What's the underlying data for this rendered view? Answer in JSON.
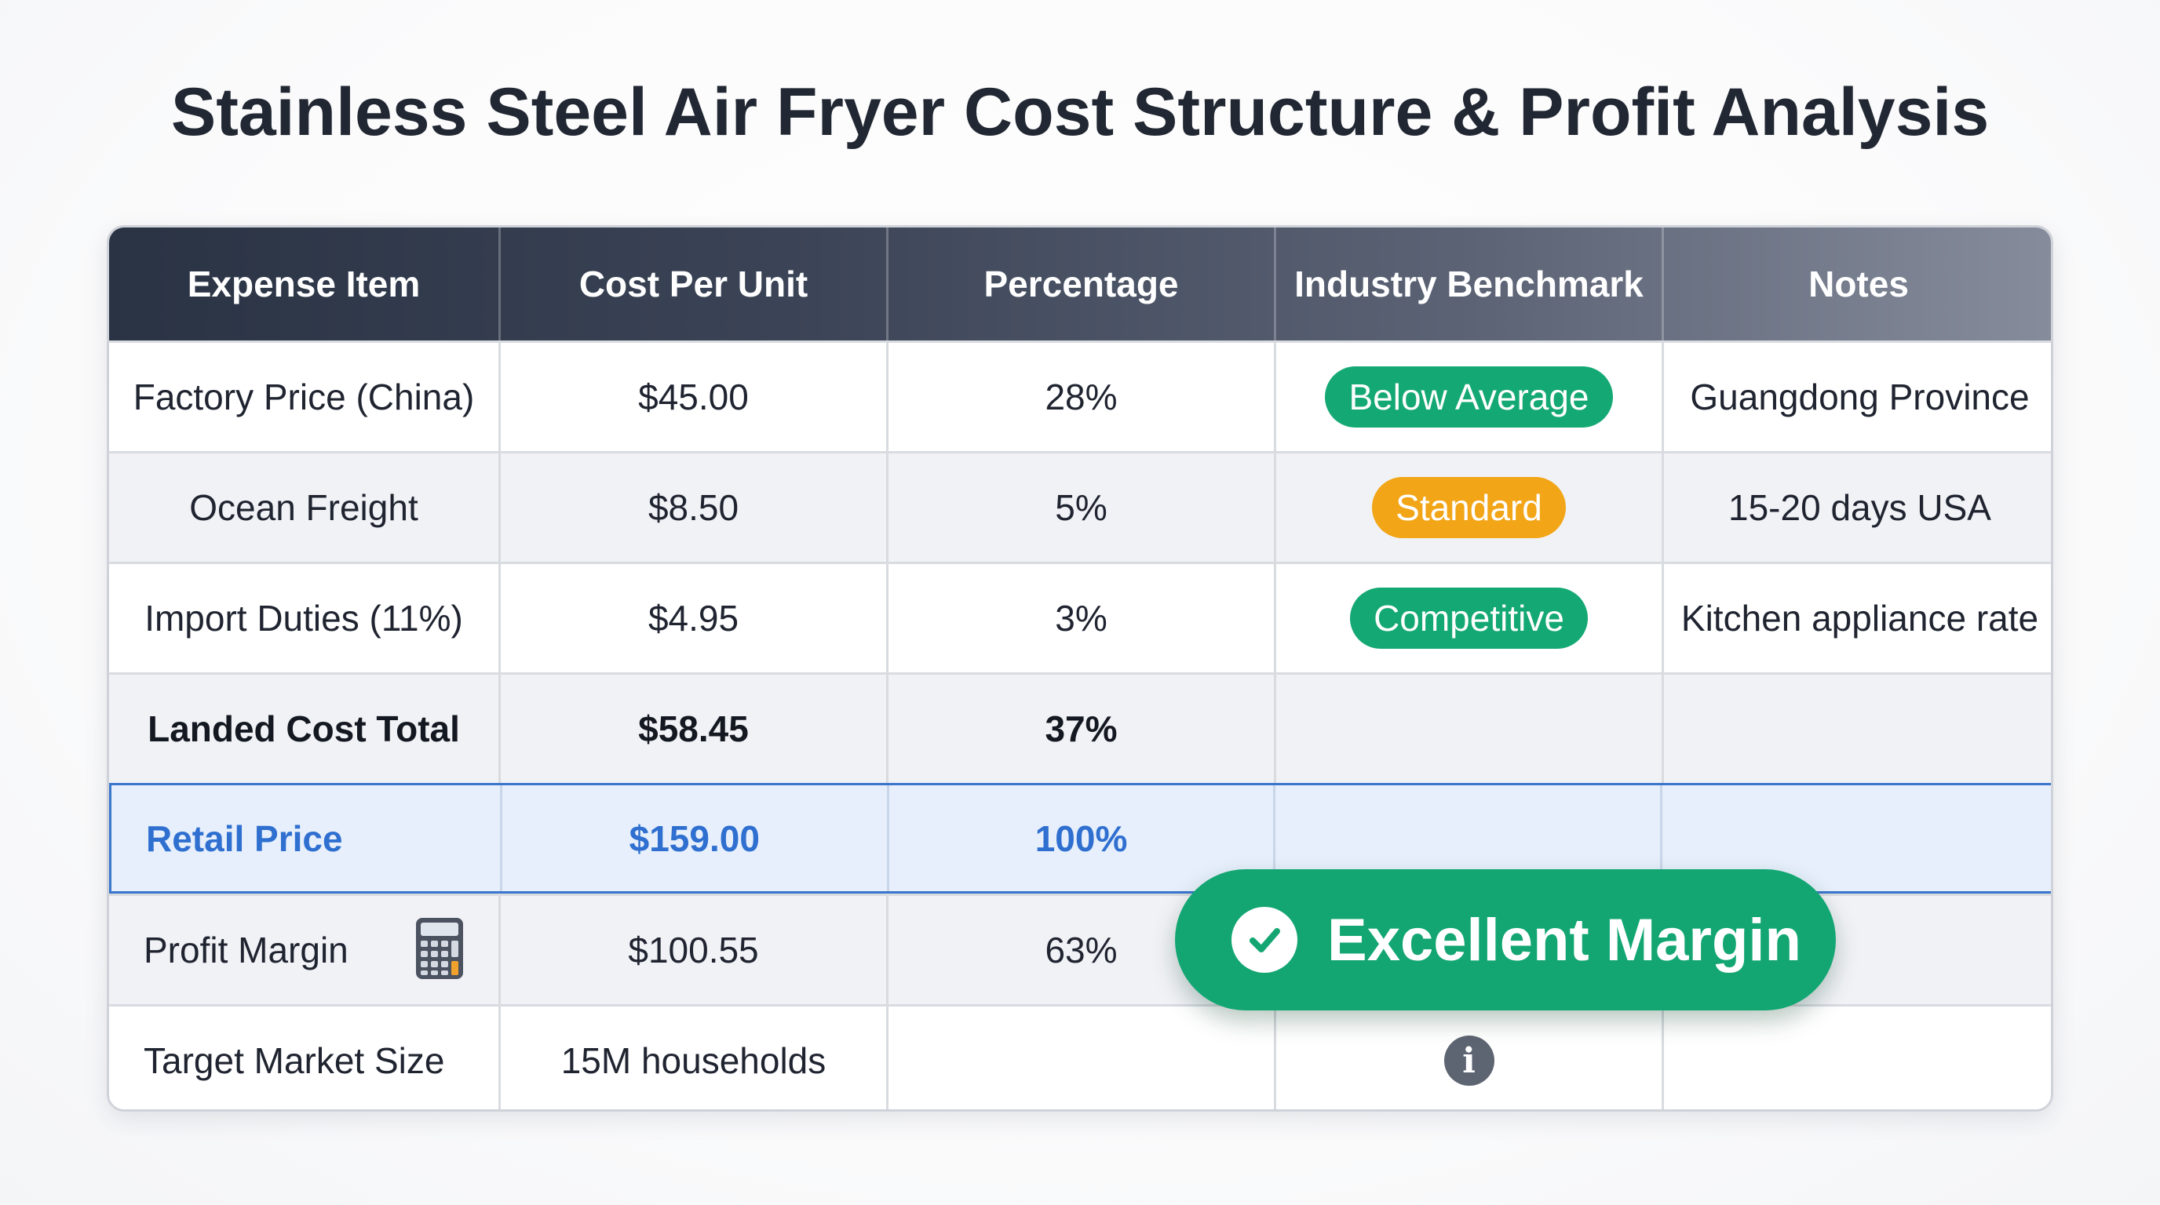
{
  "title": "Stainless Steel Air Fryer Cost Structure & Profit Analysis",
  "table": {
    "headers": [
      "Expense Item",
      "Cost Per Unit",
      "Percentage",
      "Industry Benchmark",
      "Notes"
    ],
    "rows": [
      {
        "item": "Factory Price (China)",
        "cost": "$45.00",
        "percentage": "28%",
        "benchmark": "Below Average",
        "benchmark_color": "#14a874",
        "notes": "Guangdong Province"
      },
      {
        "item": "Ocean Freight",
        "cost": "$8.50",
        "percentage": "5%",
        "benchmark": "Standard",
        "benchmark_color": "#f2a516",
        "notes": "15-20 days USA"
      },
      {
        "item": "Import Duties (11%)",
        "cost": "$4.95",
        "percentage": "3%",
        "benchmark": "Competitive",
        "benchmark_color": "#14a874",
        "notes": "Kitchen appliance rate"
      },
      {
        "item": "Landed Cost Total",
        "cost": "$58.45",
        "percentage": "37%",
        "benchmark": "",
        "notes": ""
      },
      {
        "item": "Retail Price",
        "cost": "$159.00",
        "percentage": "100%",
        "benchmark": "",
        "notes": ""
      },
      {
        "item": "Profit Margin",
        "cost": "$100.55",
        "percentage": "63%",
        "benchmark": "",
        "notes": "",
        "icon": "calculator-icon"
      },
      {
        "item": "Target Market Size",
        "cost": "15M households",
        "percentage": "",
        "benchmark": "",
        "notes": "",
        "icon": "info-icon",
        "info_glyph": "i"
      }
    ]
  },
  "badge": {
    "label": "Excellent Margin",
    "icon": "check-circle-icon",
    "color": "#13a673"
  },
  "colors": {
    "retail_highlight": "#2f6fd0",
    "header_dark": "#2a3344"
  }
}
